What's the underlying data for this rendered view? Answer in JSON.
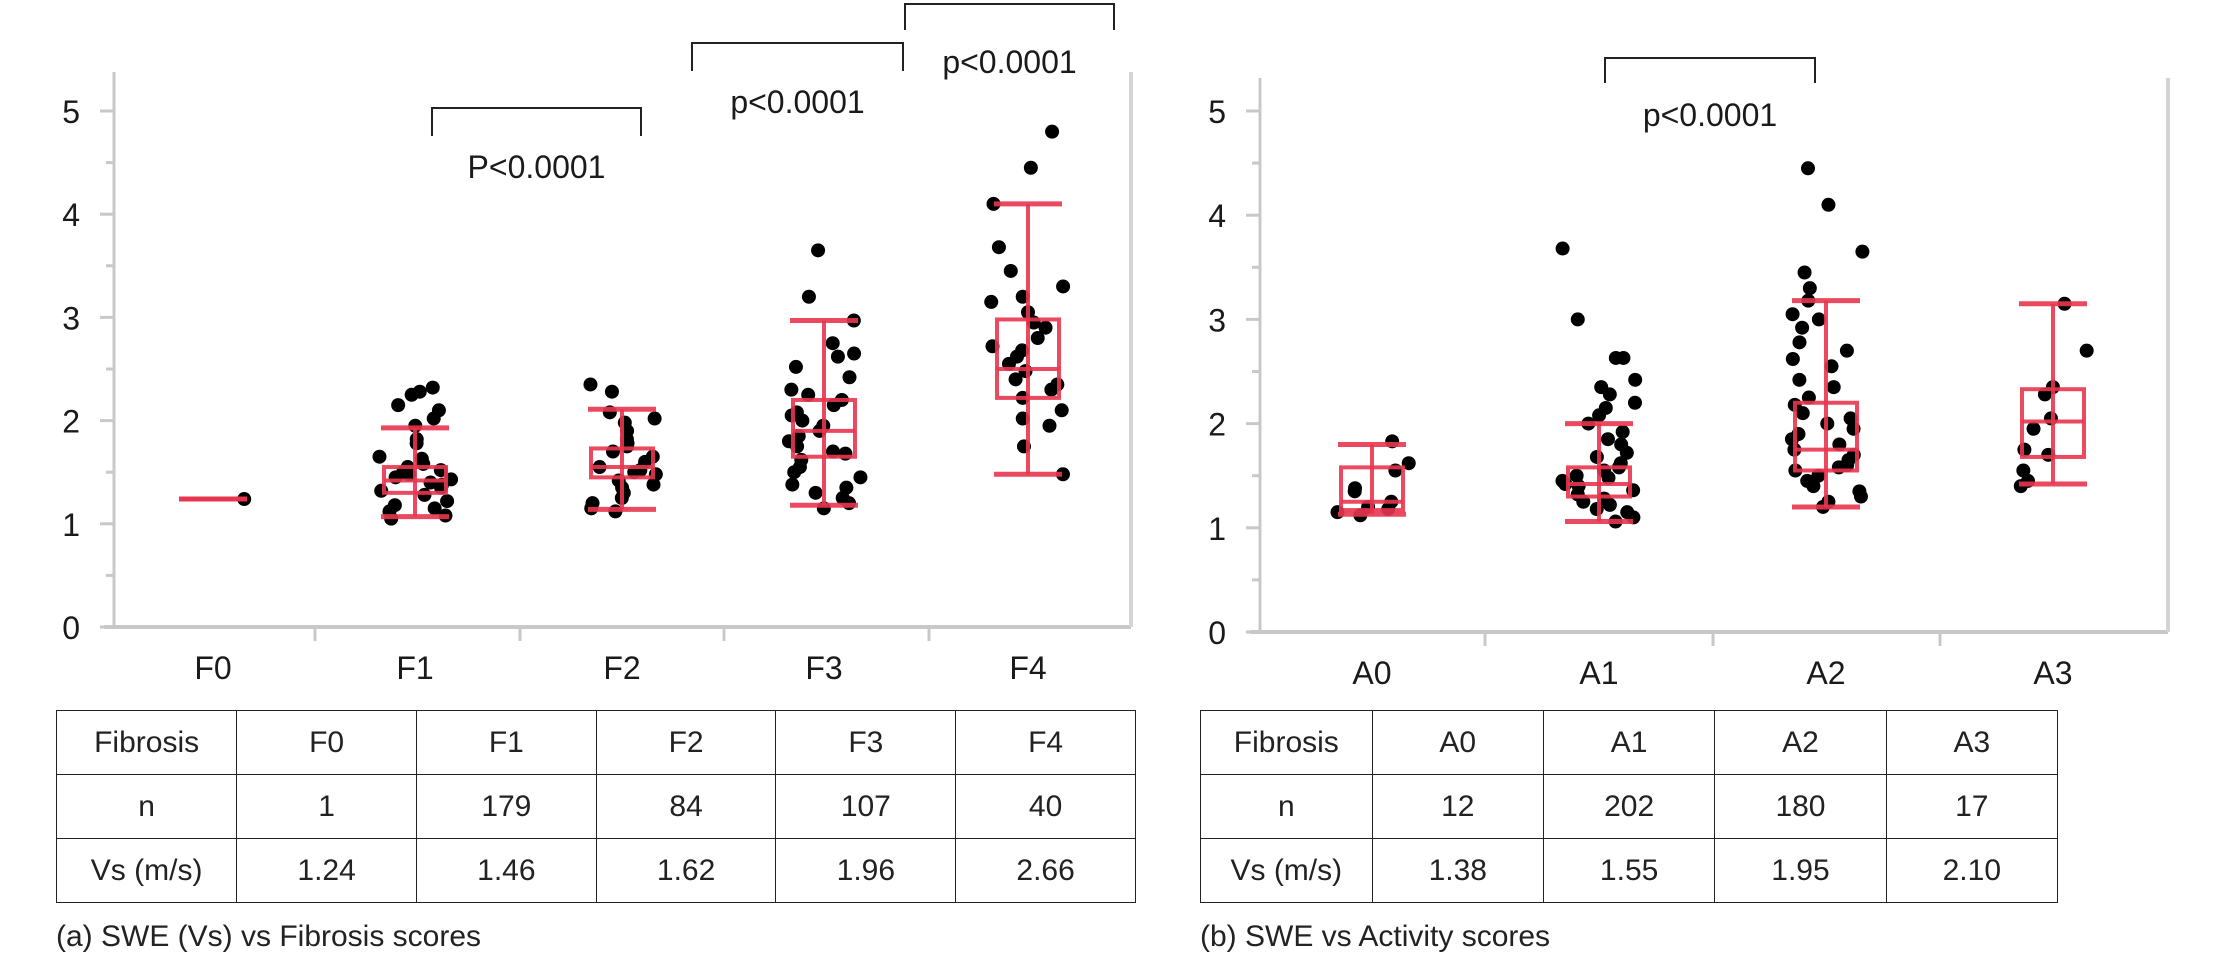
{
  "chart_data": [
    {
      "type": "box",
      "id": "a",
      "title": "",
      "xlabel": "",
      "ylabel": "",
      "ylim": [
        0,
        5
      ],
      "yticks": [
        "0",
        "1",
        "2",
        "3",
        "4",
        "5"
      ],
      "categories": [
        "F0",
        "F1",
        "F2",
        "F3",
        "F4"
      ],
      "boxes": [
        {
          "name": "F0",
          "min": 1.24,
          "q1": 1.22,
          "median": 1.24,
          "q3": 1.25,
          "max": 1.24,
          "points": [
            1.24
          ]
        },
        {
          "name": "F1",
          "min": 1.07,
          "q1": 1.3,
          "median": 1.42,
          "q3": 1.55,
          "max": 1.93,
          "points": [
            2.32,
            2.28,
            2.25,
            2.15,
            2.1,
            2.02,
            1.95,
            1.82,
            1.78,
            1.65,
            1.63,
            1.58,
            1.55,
            1.52,
            1.5,
            1.48,
            1.45,
            1.43,
            1.4,
            1.38,
            1.35,
            1.32,
            1.28,
            1.22,
            1.18,
            1.15,
            1.12,
            1.08,
            1.05
          ]
        },
        {
          "name": "F2",
          "min": 1.14,
          "q1": 1.45,
          "median": 1.55,
          "q3": 1.73,
          "max": 2.11,
          "points": [
            2.35,
            2.28,
            2.08,
            2.02,
            1.98,
            1.9,
            1.82,
            1.78,
            1.75,
            1.7,
            1.65,
            1.6,
            1.55,
            1.52,
            1.5,
            1.48,
            1.42,
            1.38,
            1.35,
            1.3,
            1.25,
            1.2,
            1.15,
            1.12
          ]
        },
        {
          "name": "F3",
          "min": 1.18,
          "q1": 1.65,
          "median": 1.9,
          "q3": 2.2,
          "max": 2.97,
          "points": [
            3.65,
            3.2,
            2.97,
            2.75,
            2.65,
            2.62,
            2.52,
            2.42,
            2.3,
            2.25,
            2.2,
            2.15,
            2.08,
            2.05,
            2.0,
            1.95,
            1.9,
            1.85,
            1.8,
            1.75,
            1.7,
            1.68,
            1.62,
            1.55,
            1.5,
            1.45,
            1.38,
            1.35,
            1.3,
            1.25,
            1.2,
            1.15
          ]
        },
        {
          "name": "F4",
          "min": 1.48,
          "q1": 2.22,
          "median": 2.5,
          "q3": 2.98,
          "max": 4.1,
          "points": [
            4.8,
            4.45,
            4.1,
            3.68,
            3.45,
            3.3,
            3.2,
            3.15,
            3.05,
            2.95,
            2.9,
            2.8,
            2.72,
            2.68,
            2.62,
            2.55,
            2.48,
            2.4,
            2.35,
            2.3,
            2.22,
            2.1,
            2.02,
            1.95,
            1.75,
            1.48
          ]
        }
      ],
      "annotations": [
        {
          "from": "F1",
          "to": "F2",
          "label": "P<0.0001"
        },
        {
          "from": "F2",
          "to": "F3",
          "label": "p<0.0001"
        },
        {
          "from": "F3",
          "to": "F4",
          "label": "p<0.0001"
        }
      ]
    },
    {
      "type": "box",
      "id": "b",
      "title": "",
      "xlabel": "",
      "ylabel": "",
      "ylim": [
        0,
        5
      ],
      "yticks": [
        "0",
        "1",
        "2",
        "3",
        "4",
        "5"
      ],
      "categories": [
        "A0",
        "A1",
        "A2",
        "A3"
      ],
      "boxes": [
        {
          "name": "A0",
          "min": 1.13,
          "q1": 1.17,
          "median": 1.25,
          "q3": 1.58,
          "max": 1.8,
          "points": [
            1.83,
            1.62,
            1.55,
            1.38,
            1.35,
            1.25,
            1.2,
            1.18,
            1.15,
            1.12
          ]
        },
        {
          "name": "A1",
          "min": 1.06,
          "q1": 1.3,
          "median": 1.42,
          "q3": 1.58,
          "max": 2.0,
          "points": [
            3.68,
            3.0,
            2.63,
            2.63,
            2.42,
            2.35,
            2.28,
            2.2,
            2.15,
            2.08,
            2.0,
            1.92,
            1.85,
            1.8,
            1.72,
            1.68,
            1.62,
            1.58,
            1.55,
            1.5,
            1.48,
            1.45,
            1.42,
            1.4,
            1.36,
            1.32,
            1.28,
            1.25,
            1.22,
            1.18,
            1.15,
            1.1,
            1.06
          ]
        },
        {
          "name": "A2",
          "min": 1.2,
          "q1": 1.55,
          "median": 1.75,
          "q3": 2.2,
          "max": 3.18,
          "points": [
            4.45,
            4.1,
            3.65,
            3.45,
            3.3,
            3.18,
            3.05,
            3.0,
            2.92,
            2.78,
            2.7,
            2.62,
            2.55,
            2.42,
            2.35,
            2.25,
            2.18,
            2.1,
            2.05,
            2.0,
            1.95,
            1.9,
            1.85,
            1.8,
            1.75,
            1.7,
            1.65,
            1.6,
            1.58,
            1.55,
            1.5,
            1.45,
            1.4,
            1.35,
            1.3,
            1.25,
            1.2
          ]
        },
        {
          "name": "A3",
          "min": 1.42,
          "q1": 1.68,
          "median": 2.02,
          "q3": 2.33,
          "max": 3.15,
          "points": [
            3.15,
            2.7,
            2.35,
            2.28,
            2.05,
            1.95,
            1.75,
            1.7,
            1.55,
            1.45,
            1.4
          ]
        }
      ],
      "annotations": [
        {
          "from": "A1",
          "to": "A2",
          "label": "p<0.0001"
        }
      ]
    }
  ],
  "tables": {
    "a": {
      "header": [
        "Fibrosis",
        "F0",
        "F1",
        "F2",
        "F3",
        "F4"
      ],
      "rows": [
        [
          "n",
          "1",
          "179",
          "84",
          "107",
          "40"
        ],
        [
          "Vs (m/s)",
          "1.24",
          "1.46",
          "1.62",
          "1.96",
          "2.66"
        ]
      ]
    },
    "b": {
      "header": [
        "Fibrosis",
        "A0",
        "A1",
        "A2",
        "A3"
      ],
      "rows": [
        [
          "n",
          "12",
          "202",
          "180",
          "17"
        ],
        [
          "Vs (m/s)",
          "1.38",
          "1.55",
          "1.95",
          "2.10"
        ]
      ]
    }
  },
  "captions": {
    "a": "(a) SWE (Vs) vs Fibrosis scores",
    "b": "(b) SWE vs Activity scores"
  },
  "colors": {
    "box": "#e8354f",
    "point": "#000000",
    "axis": "#c8c8c8",
    "text": "#1a1a1a"
  }
}
